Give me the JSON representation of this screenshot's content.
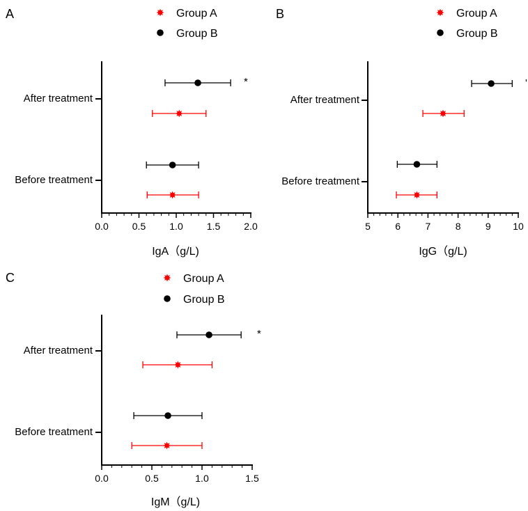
{
  "panels": [
    {
      "letter": "A",
      "legend": [
        {
          "label": "Group A",
          "marker": "star",
          "color": "#ff0000"
        },
        {
          "label": "Group B",
          "marker": "circle",
          "color": "#000000"
        }
      ],
      "categories": [
        "After treatment",
        "Before treatment"
      ],
      "xlabel": "IgA（g/L)",
      "xlim": [
        0.0,
        2.0
      ],
      "ticks": [
        "0.0",
        "0.5",
        "1.0",
        "1.5",
        "2.0"
      ],
      "annotation": "*"
    },
    {
      "letter": "B",
      "legend": [
        {
          "label": "Group A",
          "marker": "star",
          "color": "#ff0000"
        },
        {
          "label": "Group B",
          "marker": "circle",
          "color": "#000000"
        }
      ],
      "categories": [
        "After treatment",
        "Before treatment"
      ],
      "xlabel": "IgG（g/L)",
      "xlim": [
        5,
        10
      ],
      "ticks": [
        "5",
        "6",
        "7",
        "8",
        "9",
        "10"
      ],
      "annotation": "'"
    },
    {
      "letter": "C",
      "legend": [
        {
          "label": "Group A",
          "marker": "star",
          "color": "#ff0000"
        },
        {
          "label": "Group B",
          "marker": "circle",
          "color": "#000000"
        }
      ],
      "categories": [
        "After treatment",
        "Before treatment"
      ],
      "xlabel": "IgM（g/L)",
      "xlim": [
        0.0,
        1.5
      ],
      "ticks": [
        "0.0",
        "0.5",
        "1.0",
        "1.5"
      ],
      "annotation": "*"
    }
  ],
  "chart_data": [
    {
      "type": "scatter",
      "title": "",
      "xlabel": "IgA（g/L)",
      "ylabel": "",
      "xlim": [
        0.0,
        2.0
      ],
      "categories": [
        "After treatment",
        "Before treatment"
      ],
      "series": [
        {
          "name": "Group B",
          "color": "#000000",
          "marker": "circle",
          "points": [
            {
              "category": "After treatment",
              "mean": 1.29,
              "low": 0.85,
              "high": 1.73
            },
            {
              "category": "Before treatment",
              "mean": 0.95,
              "low": 0.6,
              "high": 1.3
            }
          ]
        },
        {
          "name": "Group A",
          "color": "#ff0000",
          "marker": "star",
          "points": [
            {
              "category": "After treatment",
              "mean": 1.04,
              "low": 0.68,
              "high": 1.4
            },
            {
              "category": "Before treatment",
              "mean": 0.95,
              "low": 0.61,
              "high": 1.3
            }
          ]
        }
      ]
    },
    {
      "type": "scatter",
      "title": "",
      "xlabel": "IgG（g/L)",
      "ylabel": "",
      "xlim": [
        5,
        10
      ],
      "categories": [
        "After treatment",
        "Before treatment"
      ],
      "series": [
        {
          "name": "Group B",
          "color": "#000000",
          "marker": "circle",
          "points": [
            {
              "category": "After treatment",
              "mean": 9.1,
              "low": 8.45,
              "high": 9.8
            },
            {
              "category": "Before treatment",
              "mean": 6.63,
              "low": 5.98,
              "high": 7.3
            }
          ]
        },
        {
          "name": "Group A",
          "color": "#ff0000",
          "marker": "star",
          "points": [
            {
              "category": "After treatment",
              "mean": 7.5,
              "low": 6.83,
              "high": 8.2
            },
            {
              "category": "Before treatment",
              "mean": 6.63,
              "low": 5.95,
              "high": 7.3
            }
          ]
        }
      ]
    },
    {
      "type": "scatter",
      "title": "",
      "xlabel": "IgM（g/L)",
      "ylabel": "",
      "xlim": [
        0.0,
        1.5
      ],
      "categories": [
        "After treatment",
        "Before treatment"
      ],
      "series": [
        {
          "name": "Group B",
          "color": "#000000",
          "marker": "circle",
          "points": [
            {
              "category": "After treatment",
              "mean": 1.07,
              "low": 0.75,
              "high": 1.39
            },
            {
              "category": "Before treatment",
              "mean": 0.66,
              "low": 0.32,
              "high": 1.0
            }
          ]
        },
        {
          "name": "Group A",
          "color": "#ff0000",
          "marker": "star",
          "points": [
            {
              "category": "After treatment",
              "mean": 0.76,
              "low": 0.41,
              "high": 1.1
            },
            {
              "category": "Before treatment",
              "mean": 0.65,
              "low": 0.3,
              "high": 1.0
            }
          ]
        }
      ]
    }
  ]
}
